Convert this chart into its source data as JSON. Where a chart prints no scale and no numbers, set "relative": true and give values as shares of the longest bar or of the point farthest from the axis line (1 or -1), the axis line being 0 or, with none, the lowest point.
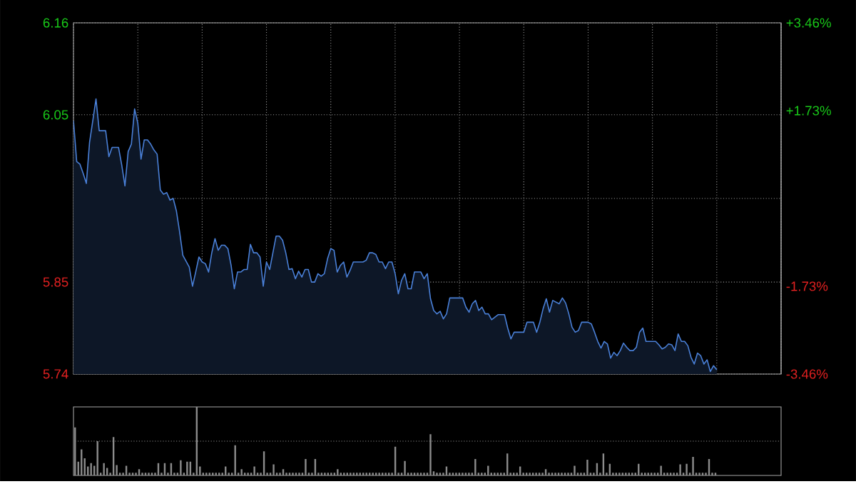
{
  "chart_data": [
    {
      "type": "area",
      "grid": true,
      "marker": "none",
      "tick_labels": "y",
      "categories": [
        null,
        null,
        null,
        null,
        null,
        null,
        null,
        null,
        null,
        null,
        null,
        null,
        null,
        null,
        null,
        null,
        null,
        null,
        null,
        null,
        null,
        null,
        null,
        null,
        null,
        null,
        null,
        null,
        null,
        null,
        null,
        null,
        null,
        null,
        null,
        null,
        null,
        null,
        null,
        null,
        null,
        null,
        null,
        null,
        null,
        null,
        null,
        null,
        null,
        null,
        null,
        null,
        null,
        null,
        null,
        null,
        null,
        null,
        null,
        null,
        null,
        null,
        null,
        null,
        null,
        null,
        null,
        null,
        null,
        null,
        null,
        null,
        null,
        null,
        null,
        null,
        null,
        null,
        null,
        null,
        null,
        null,
        null,
        null,
        null,
        null,
        null,
        null,
        null,
        null,
        null,
        null,
        null,
        null,
        null,
        null,
        null,
        null,
        null,
        null,
        null,
        null,
        null,
        null,
        null,
        null,
        null,
        null,
        null,
        null,
        null,
        null,
        null,
        null,
        null,
        null,
        null,
        null,
        null,
        null,
        null,
        null,
        null,
        null,
        null,
        null,
        null,
        null,
        null,
        null,
        null,
        null,
        null,
        null,
        null,
        null,
        null,
        null,
        null,
        null,
        null,
        null,
        null,
        null,
        null,
        null,
        null,
        null,
        null,
        null,
        null,
        null,
        null,
        null,
        null,
        null,
        null,
        null,
        null,
        null,
        null,
        null,
        null,
        null,
        null,
        null,
        null,
        null,
        null,
        null,
        null,
        null,
        null,
        null,
        null,
        null,
        null,
        null,
        null,
        null,
        null,
        null,
        null,
        null,
        null,
        null,
        null,
        null,
        null,
        null,
        null,
        null,
        null,
        null,
        null,
        null,
        null,
        null,
        null,
        null,
        null,
        null,
        null,
        null,
        null,
        null,
        null,
        null,
        null,
        null,
        null,
        null,
        null,
        null,
        null,
        null,
        null,
        null,
        null,
        null,
        null
      ],
      "ylim": [
        5.74,
        6.16
      ],
      "yticks": [
        5.74,
        5.85,
        {
          "value": 5.95,
          "label": null
        },
        6.05,
        6.16
      ],
      "y2lim": [
        -3.46,
        3.46
      ],
      "y2ticks": [
        {
          "value": -3.46,
          "label": "-3.46%"
        },
        {
          "value": -1.73,
          "label": "-1.73%"
        },
        {
          "value": 0,
          "label": null
        },
        {
          "value": 1.73,
          "label": "+1.73%"
        },
        {
          "value": 3.46,
          "label": "+3.46%"
        }
      ],
      "series": [
        {
          "color": "#4a80d8",
          "values": [
            6.043,
            5.994,
            5.991,
            5.98,
            5.968,
            6.017,
            6.043,
            6.069,
            6.031,
            6.031,
            6.031,
            6.0,
            6.011,
            6.011,
            6.011,
            5.99,
            5.965,
            6.006,
            6.015,
            6.057,
            6.04,
            5.997,
            6.02,
            6.02,
            6.015,
            6.008,
            6.003,
            5.96,
            5.955,
            5.957,
            5.948,
            5.95,
            5.935,
            5.91,
            5.882,
            5.875,
            5.868,
            5.845,
            5.862,
            5.88,
            5.874,
            5.872,
            5.862,
            5.885,
            5.902,
            5.888,
            5.894,
            5.894,
            5.89,
            5.87,
            5.842,
            5.862,
            5.862,
            5.865,
            5.865,
            5.895,
            5.885,
            5.885,
            5.88,
            5.845,
            5.874,
            5.865,
            5.885,
            5.905,
            5.905,
            5.9,
            5.885,
            5.865,
            5.866,
            5.854,
            5.863,
            5.856,
            5.865,
            5.865,
            5.85,
            5.85,
            5.86,
            5.857,
            5.86,
            5.878,
            5.89,
            5.888,
            5.862,
            5.87,
            5.874,
            5.856,
            5.864,
            5.874,
            5.874,
            5.874,
            5.874,
            5.876,
            5.885,
            5.885,
            5.883,
            5.874,
            5.874,
            5.866,
            5.874,
            5.874,
            5.86,
            5.836,
            5.852,
            5.86,
            5.842,
            5.842,
            5.862,
            5.862,
            5.862,
            5.854,
            5.86,
            5.83,
            5.816,
            5.812,
            5.815,
            5.806,
            5.812,
            5.831,
            5.831,
            5.831,
            5.831,
            5.831,
            5.82,
            5.814,
            5.824,
            5.828,
            5.816,
            5.82,
            5.812,
            5.812,
            5.805,
            5.808,
            5.811,
            5.811,
            5.811,
            5.795,
            5.782,
            5.79,
            5.79,
            5.79,
            5.79,
            5.802,
            5.802,
            5.802,
            5.79,
            5.802,
            5.818,
            5.83,
            5.814,
            5.828,
            5.826,
            5.824,
            5.831,
            5.825,
            5.812,
            5.796,
            5.79,
            5.792,
            5.802,
            5.802,
            5.802,
            5.8,
            5.79,
            5.779,
            5.771,
            5.779,
            5.776,
            5.759,
            5.766,
            5.762,
            5.768,
            5.777,
            5.772,
            5.768,
            5.768,
            5.772,
            5.79,
            5.795,
            5.779,
            5.779,
            5.779,
            5.779,
            5.775,
            5.77,
            5.772,
            5.776,
            5.775,
            5.768,
            5.788,
            5.779,
            5.779,
            5.774,
            5.76,
            5.752,
            5.765,
            5.762,
            5.752,
            5.757,
            5.743,
            5.75,
            5.745,
            null,
            null,
            null,
            null,
            null,
            null,
            null,
            null,
            null,
            null,
            null,
            null,
            null,
            null,
            null,
            null,
            null,
            null,
            null,
            null
          ]
        }
      ]
    },
    {
      "type": "bar",
      "relative": true,
      "tick_labels": false,
      "ref_lines": [
        {
          "axis": "y",
          "value": 0.5,
          "line_style": "dotted"
        }
      ],
      "categories": [
        null,
        null,
        null,
        null,
        null,
        null,
        null,
        null,
        null,
        null,
        null,
        null,
        null,
        null,
        null,
        null,
        null,
        null,
        null,
        null,
        null,
        null,
        null,
        null,
        null,
        null,
        null,
        null,
        null,
        null,
        null,
        null,
        null,
        null,
        null,
        null,
        null,
        null,
        null,
        null,
        null,
        null,
        null,
        null,
        null,
        null,
        null,
        null,
        null,
        null,
        null,
        null,
        null,
        null,
        null,
        null,
        null,
        null,
        null,
        null,
        null,
        null,
        null,
        null,
        null,
        null,
        null,
        null,
        null,
        null,
        null,
        null,
        null,
        null,
        null,
        null,
        null,
        null,
        null,
        null,
        null,
        null,
        null,
        null,
        null,
        null,
        null,
        null,
        null,
        null,
        null,
        null,
        null,
        null,
        null,
        null,
        null,
        null,
        null,
        null,
        null,
        null,
        null,
        null,
        null,
        null,
        null,
        null,
        null,
        null,
        null,
        null,
        null,
        null,
        null,
        null,
        null,
        null,
        null,
        null,
        null,
        null,
        null,
        null,
        null,
        null,
        null,
        null,
        null,
        null,
        null,
        null,
        null,
        null,
        null,
        null,
        null,
        null,
        null,
        null,
        null,
        null,
        null,
        null,
        null,
        null,
        null,
        null,
        null,
        null,
        null,
        null,
        null,
        null,
        null,
        null,
        null,
        null,
        null,
        null,
        null,
        null,
        null,
        null,
        null,
        null,
        null,
        null,
        null,
        null,
        null,
        null,
        null,
        null,
        null,
        null,
        null,
        null,
        null,
        null,
        null,
        null,
        null,
        null,
        null,
        null,
        null,
        null,
        null,
        null,
        null,
        null,
        null,
        null,
        null,
        null,
        null,
        null,
        null,
        null,
        null,
        null,
        null,
        null,
        null,
        null,
        null,
        null,
        null,
        null,
        null,
        null,
        null,
        null,
        null,
        null,
        null,
        null,
        null,
        null,
        null
      ],
      "series": [
        {
          "color": "#8c8c8c",
          "values": [
            0.7,
            0.2,
            0.38,
            0.25,
            0.13,
            0.18,
            0.14,
            0.5,
            0.04,
            0.18,
            0.11,
            0.04,
            0.56,
            0.15,
            0.04,
            0.04,
            0.14,
            0.04,
            0.04,
            0.04,
            0.09,
            0.04,
            0.04,
            0.04,
            0.04,
            0.04,
            0.18,
            0.04,
            0.18,
            0.04,
            0.18,
            0.04,
            0.04,
            0.22,
            0.04,
            0.2,
            0.2,
            0.04,
            1.0,
            0.13,
            0.04,
            0.04,
            0.04,
            0.04,
            0.04,
            0.04,
            0.04,
            0.13,
            0.04,
            0.04,
            0.44,
            0.04,
            0.09,
            0.04,
            0.04,
            0.04,
            0.13,
            0.04,
            0.04,
            0.35,
            0.04,
            0.04,
            0.16,
            0.04,
            0.04,
            0.09,
            0.04,
            0.04,
            0.04,
            0.04,
            0.04,
            0.04,
            0.24,
            0.04,
            0.04,
            0.24,
            0.04,
            0.04,
            0.04,
            0.04,
            0.04,
            0.04,
            0.09,
            0.04,
            0.04,
            0.04,
            0.04,
            0.04,
            0.04,
            0.04,
            0.04,
            0.04,
            0.04,
            0.04,
            0.04,
            0.04,
            0.04,
            0.04,
            0.04,
            0.04,
            0.42,
            0.04,
            0.04,
            0.21,
            0.04,
            0.04,
            0.04,
            0.04,
            0.04,
            0.04,
            0.04,
            0.6,
            0.06,
            0.04,
            0.04,
            0.04,
            0.13,
            0.04,
            0.04,
            0.04,
            0.04,
            0.04,
            0.04,
            0.04,
            0.04,
            0.24,
            0.04,
            0.04,
            0.04,
            0.14,
            0.04,
            0.04,
            0.04,
            0.04,
            0.04,
            0.32,
            0.04,
            0.04,
            0.04,
            0.13,
            0.04,
            0.04,
            0.04,
            0.04,
            0.04,
            0.04,
            0.04,
            0.09,
            0.04,
            0.04,
            0.04,
            0.04,
            0.04,
            0.04,
            0.04,
            0.04,
            0.14,
            0.04,
            0.04,
            0.04,
            0.23,
            0.04,
            0.04,
            0.18,
            0.04,
            0.32,
            0.04,
            0.17,
            0.04,
            0.04,
            0.04,
            0.04,
            0.04,
            0.04,
            0.04,
            0.04,
            0.17,
            0.04,
            0.04,
            0.04,
            0.04,
            0.04,
            0.04,
            0.14,
            0.04,
            0.04,
            0.04,
            0.04,
            0.04,
            0.16,
            0.04,
            0.17,
            0.04,
            0.27,
            0.04,
            0.04,
            0.04,
            0.04,
            0.24,
            0.04,
            0.04,
            null,
            null,
            null,
            null,
            null,
            null,
            null,
            null,
            null,
            null,
            null,
            null,
            null,
            null,
            null,
            null,
            null,
            null,
            null,
            null
          ]
        }
      ]
    }
  ]
}
